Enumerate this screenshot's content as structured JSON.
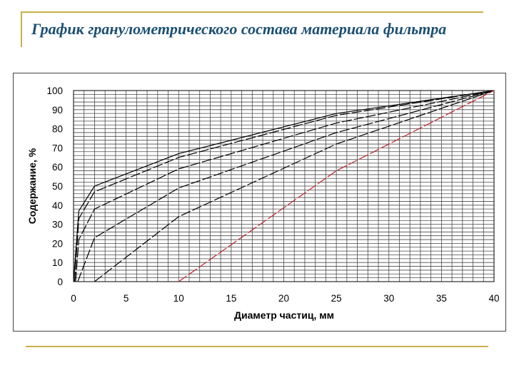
{
  "page": {
    "title": "График гранулометрического состава материала фильтра",
    "accent": "#c9b04a",
    "title_color": "#1b4f72"
  },
  "chart_data": {
    "type": "line",
    "title": "График гранулометрического состава материала фильтра",
    "xlabel": "Диаметр частиц, мм",
    "ylabel": "Содержание, %",
    "xlim": [
      0,
      40
    ],
    "ylim": [
      0,
      100
    ],
    "x_ticks": [
      "0",
      "5",
      "10",
      "15",
      "20",
      "25",
      "30",
      "35",
      "40"
    ],
    "y_ticks": [
      "0",
      "10",
      "20",
      "30",
      "40",
      "50",
      "60",
      "70",
      "80",
      "90",
      "100"
    ],
    "grid": true,
    "series": [
      {
        "color": "#000000",
        "dash": "solid",
        "points": [
          [
            0,
            0
          ],
          [
            0.5,
            37
          ],
          [
            2,
            50
          ],
          [
            10,
            67
          ],
          [
            25,
            88
          ],
          [
            40,
            100
          ]
        ]
      },
      {
        "color": "#000000",
        "dash": "dashed",
        "points": [
          [
            0.1,
            0
          ],
          [
            0.5,
            33
          ],
          [
            2,
            47
          ],
          [
            10,
            65
          ],
          [
            25,
            87
          ],
          [
            40,
            100
          ]
        ]
      },
      {
        "color": "#000000",
        "dash": "dashed",
        "points": [
          [
            0.2,
            0
          ],
          [
            0.5,
            22
          ],
          [
            2,
            38
          ],
          [
            10,
            59
          ],
          [
            25,
            83
          ],
          [
            40,
            100
          ]
        ]
      },
      {
        "color": "#000000",
        "dash": "dashed",
        "points": [
          [
            0.4,
            0
          ],
          [
            2,
            23
          ],
          [
            10,
            49
          ],
          [
            25,
            78
          ],
          [
            40,
            100
          ]
        ]
      },
      {
        "color": "#000000",
        "dash": "dashed",
        "points": [
          [
            2,
            0
          ],
          [
            10,
            34
          ],
          [
            25,
            72
          ],
          [
            40,
            100
          ]
        ]
      },
      {
        "color": "#c0202a",
        "dash": "dashed",
        "points": [
          [
            10,
            0
          ],
          [
            25,
            58
          ],
          [
            40,
            100
          ]
        ]
      }
    ]
  }
}
